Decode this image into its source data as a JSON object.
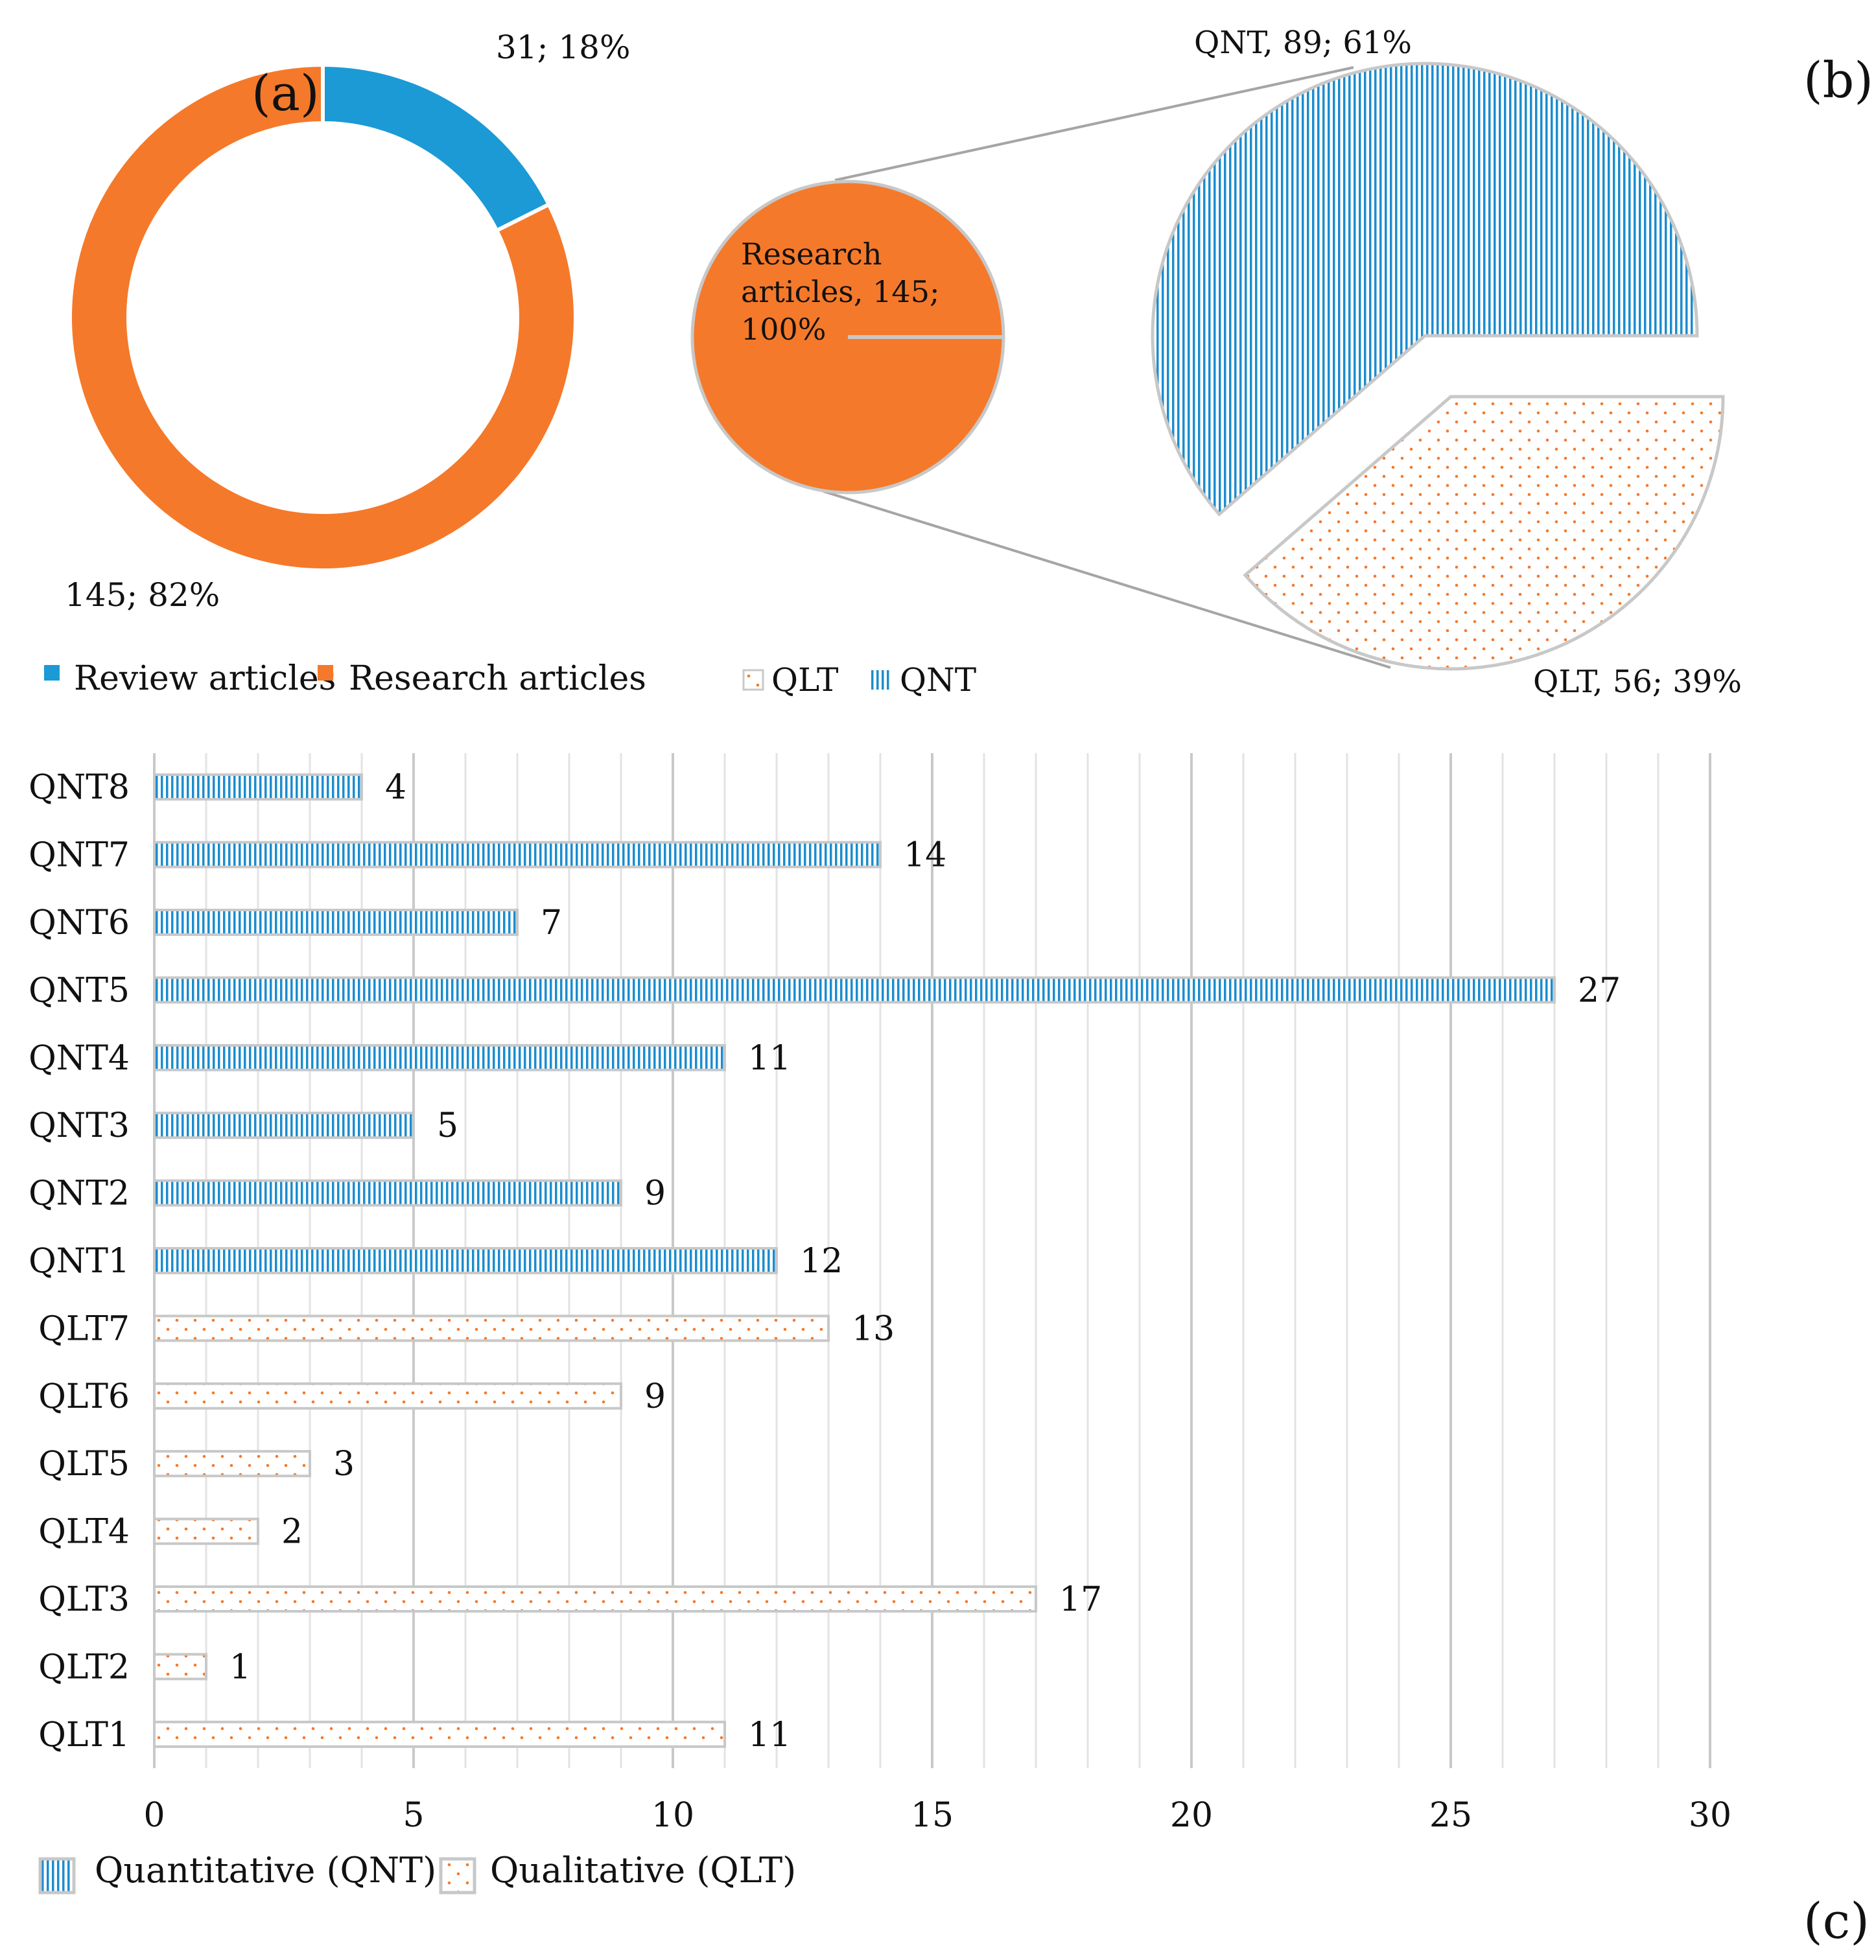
{
  "colors": {
    "review": "#1b9ad6",
    "research": "#f5792a",
    "qnt_stripe": "#1b8ccf",
    "qlt_dot": "#f5792a",
    "slice_border": "#c8c8c8",
    "grid": "#d9d9d9"
  },
  "chart_data": [
    {
      "type": "pie",
      "variant": "donut",
      "panel_label": "(a)",
      "slices": [
        {
          "name": "Review articles",
          "value": 31,
          "percent": 18,
          "label": "31; 18%"
        },
        {
          "name": "Research articles",
          "value": 145,
          "percent": 82,
          "label": "145; 82%"
        }
      ],
      "legend": [
        "Review articles",
        "Research articles"
      ],
      "legend_position": "bottom"
    },
    {
      "type": "pie",
      "variant": "pie-of-pie",
      "panel_label": "(b)",
      "main_slice": {
        "name": "Research articles",
        "value": 145,
        "percent": 100,
        "label_lines": [
          "Research",
          "articles, 145;",
          "100%"
        ]
      },
      "slices": [
        {
          "name": "QNT",
          "value": 89,
          "percent": 61,
          "label": "QNT, 89; 61%"
        },
        {
          "name": "QLT",
          "value": 56,
          "percent": 39,
          "label": "QLT, 56; 39%"
        }
      ],
      "legend": [
        "QLT",
        "QNT"
      ],
      "legend_position": "bottom"
    },
    {
      "type": "bar",
      "orientation": "horizontal",
      "panel_label": "(c)",
      "categories": [
        "QNT8",
        "QNT7",
        "QNT6",
        "QNT5",
        "QNT4",
        "QNT3",
        "QNT2",
        "QNT1",
        "QLT7",
        "QLT6",
        "QLT5",
        "QLT4",
        "QLT3",
        "QLT2",
        "QLT1"
      ],
      "values": [
        4,
        14,
        7,
        27,
        11,
        5,
        9,
        12,
        13,
        9,
        3,
        2,
        17,
        1,
        11
      ],
      "series_of": [
        "QNT",
        "QNT",
        "QNT",
        "QNT",
        "QNT",
        "QNT",
        "QNT",
        "QNT",
        "QLT",
        "QLT",
        "QLT",
        "QLT",
        "QLT",
        "QLT",
        "QLT"
      ],
      "xlim": [
        0,
        30
      ],
      "xticks": [
        0,
        5,
        10,
        15,
        20,
        25,
        30
      ],
      "grid": true,
      "legend": [
        "Quantitative (QNT)",
        "Qualitative (QLT)"
      ],
      "legend_position": "bottom-left"
    }
  ]
}
